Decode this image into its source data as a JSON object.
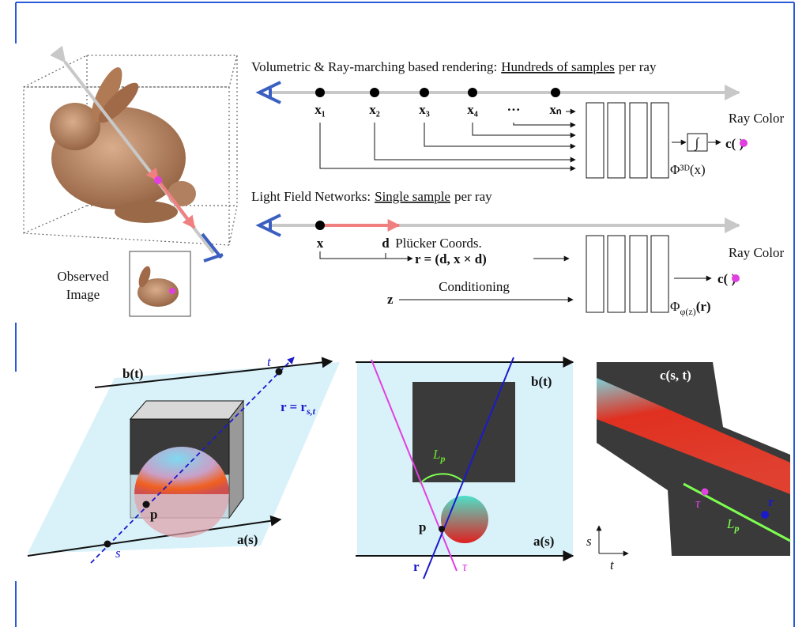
{
  "top": {
    "volumetric": {
      "caption": [
        "Volumetric & Ray-marching based rendering:",
        "Hundreds of samples",
        "per ray"
      ],
      "samples": [
        "x₁",
        "x₂",
        "x₃",
        "x₄",
        "···",
        "xₙ"
      ],
      "ray_color": "Ray Color",
      "integral": "∫",
      "color_out": "c( )",
      "network": "Φ³ᴰ(x)"
    },
    "lfn": {
      "caption": [
        "Light Field Networks:",
        "Single sample",
        "per ray"
      ],
      "origin": "x",
      "direction": "d",
      "plucker": "Plücker Coords.",
      "plucker_formula": "r = (d, x × d)",
      "latent": "z",
      "conditioning": "Conditioning",
      "ray_color": "Ray Color",
      "color_out": "c( )",
      "network": [
        "Φ",
        "φ(z)",
        "(r)"
      ]
    },
    "observed": [
      "Observed",
      "Image"
    ]
  },
  "bottom": {
    "left": {
      "b_line": "b(t)",
      "t": "t",
      "ray": [
        "r = r",
        "s,t"
      ],
      "p": "p",
      "a_line": "a(s)",
      "s": "s"
    },
    "middle": {
      "b_line": "b(t)",
      "lp": [
        "L",
        "p"
      ],
      "p": "p",
      "a_line": "a(s)",
      "r": "r",
      "tau": "τ"
    },
    "right": {
      "title": "c(s, t)",
      "tau": "τ",
      "r": "r",
      "lp": [
        "L",
        "p"
      ],
      "s": "s",
      "t": "t"
    }
  }
}
